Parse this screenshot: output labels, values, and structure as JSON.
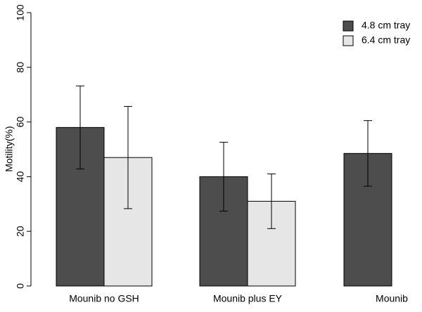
{
  "chart_data": {
    "type": "bar",
    "y_label": "Motility(%)",
    "categories": [
      "Mounib no GSH",
      "Mounib plus EY",
      "Mounib"
    ],
    "series": [
      {
        "name": "4.8 cm tray",
        "color": "#4d4d4d",
        "values": [
          58,
          40,
          48.5
        ],
        "errors": [
          15.2,
          12.6,
          12
        ]
      },
      {
        "name": "6.4 cm tray",
        "color": "#e6e6e6",
        "values": [
          47,
          31,
          null
        ],
        "errors": [
          18.7,
          10,
          null
        ]
      }
    ],
    "ylim": [
      0,
      100
    ],
    "yticks": [
      0,
      20,
      40,
      60,
      80,
      100
    ],
    "legend": "top-right"
  }
}
